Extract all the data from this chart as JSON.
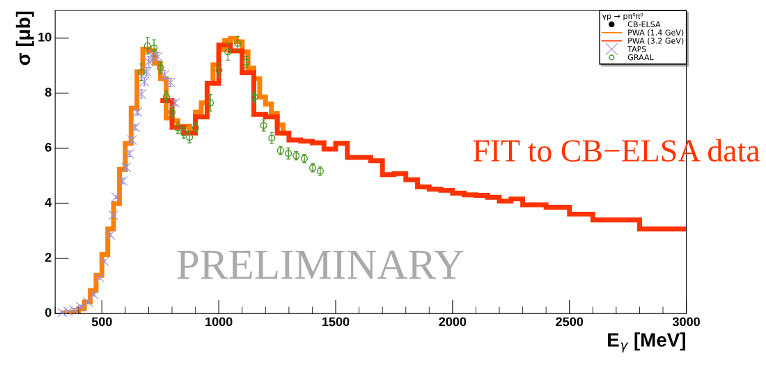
{
  "chart_data": {
    "type": "histogram",
    "xlabel": "E$_{γ}$ [MeV]",
    "ylabel": "σ [μb]",
    "legend_title": "γp → pπ⁰π⁰",
    "xlim": [
      300,
      3000
    ],
    "xticks": [
      500,
      1000,
      1500,
      2000,
      2500,
      3000
    ],
    "ylim": [
      0,
      11
    ],
    "yticks": [
      0,
      2,
      4,
      6,
      8,
      10
    ],
    "grid": false,
    "legend": "top right",
    "annotations": [
      "PRELIMINARY",
      "FIT to CB−ELSA data"
    ],
    "series": [
      {
        "type": "scatter",
        "name": "CB-ELSA",
        "color": "#000000",
        "marker": "circle"
      },
      {
        "name": "PWA (1.4 GeV)",
        "color": "#ff7f00",
        "bins": [
          325,
          350,
          375,
          400,
          425,
          450,
          475,
          500,
          525,
          550,
          575,
          600,
          625,
          650,
          675,
          700,
          725,
          750,
          775,
          800,
          825,
          850,
          875,
          900,
          925,
          950,
          975,
          1000,
          1025,
          1050,
          1075,
          1100,
          1125,
          1150,
          1175,
          1200,
          1225,
          1250,
          1275,
          1300
        ],
        "values": [
          0.02,
          0.03,
          0.05,
          0.17,
          0.42,
          0.84,
          1.39,
          2.14,
          3.07,
          3.99,
          5.23,
          6.18,
          7.46,
          8.78,
          9.6,
          9.54,
          9.09,
          8.53,
          7.1,
          7.0,
          6.8,
          6.8,
          6.7,
          7.31,
          7.65,
          8.36,
          9.03,
          9.58,
          9.91,
          9.99,
          9.87,
          9.5,
          8.91,
          8.53,
          7.86,
          7.61,
          7.27,
          6.85,
          6.55
        ]
      },
      {
        "name": "PWA (3.2 GeV)",
        "color": "#ff3300",
        "bins": [
          750,
          800,
          850,
          900,
          950,
          1000,
          1050,
          1100,
          1150,
          1200,
          1250,
          1300,
          1350,
          1400,
          1450,
          1500,
          1550,
          1650,
          1700,
          1750,
          1800,
          1850,
          1900,
          1950,
          2000,
          2050,
          2100,
          2150,
          2200,
          2250,
          2300,
          2400,
          2500,
          2600,
          2800,
          3000
        ],
        "values": [
          7.73,
          6.76,
          6.55,
          7.14,
          8.36,
          9.75,
          9.54,
          8.74,
          7.23,
          7.14,
          6.55,
          6.3,
          6.26,
          6.2,
          5.97,
          6.18,
          5.67,
          5.55,
          5.04,
          5.08,
          4.86,
          4.6,
          4.52,
          4.47,
          4.37,
          4.31,
          4.29,
          4.22,
          4.08,
          4.16,
          3.95,
          3.86,
          3.61,
          3.4,
          3.07
        ]
      },
      {
        "type": "scatter",
        "name": "TAPS",
        "color": "#9b8fd6",
        "marker": "cross",
        "x": [
          331,
          356,
          381,
          410,
          440,
          465,
          490,
          510,
          536,
          549,
          561,
          589,
          604,
          617,
          629,
          642,
          652,
          669,
          682,
          692,
          701,
          714,
          739,
          768,
          793,
          813
        ],
        "values": [
          0.04,
          0.08,
          0.13,
          0.25,
          0.42,
          0.69,
          1.3,
          1.89,
          2.86,
          3.57,
          4.22,
          4.81,
          5.31,
          5.8,
          6.3,
          6.76,
          7.31,
          7.97,
          8.42,
          8.78,
          9.14,
          9.34,
          9.33,
          8.67,
          8.39,
          7.65
        ],
        "errors": [
          null,
          null,
          0.05,
          0.05,
          0.05,
          0.05,
          0.05,
          0.05,
          0.05,
          0.05,
          0.05,
          0.1,
          0.1,
          0.1,
          0.1,
          0.1,
          0.1,
          0.15,
          0.15,
          0.15,
          0.2,
          0.2,
          0.15,
          0.15,
          0.15,
          0.1
        ]
      },
      {
        "type": "scatter",
        "name": "GRAAL",
        "color": "#4c9a2a",
        "marker": "circle",
        "x": [
          669,
          695,
          723,
          750,
          776,
          800,
          825,
          850,
          875,
          901,
          964,
          1001,
          1039,
          1081,
          1118,
          1153,
          1192,
          1227,
          1264,
          1298,
          1331,
          1366,
          1402,
          1434
        ],
        "values": [
          8.76,
          9.72,
          9.64,
          8.93,
          7.87,
          7.31,
          6.74,
          6.57,
          6.4,
          6.75,
          7.65,
          8.84,
          9.5,
          9.81,
          9.13,
          7.86,
          6.83,
          6.37,
          5.92,
          5.81,
          5.73,
          5.63,
          5.29,
          5.17
        ],
        "errors": [
          0.3,
          0.3,
          0.3,
          0.2,
          0.2,
          0.2,
          0.2,
          0.2,
          0.2,
          0.15,
          0.3,
          0.25,
          0.3,
          0.25,
          0.2,
          0.2,
          0.2,
          0.2,
          0.15,
          0.2,
          0.15,
          0.15,
          0.15,
          0.15
        ]
      }
    ]
  }
}
